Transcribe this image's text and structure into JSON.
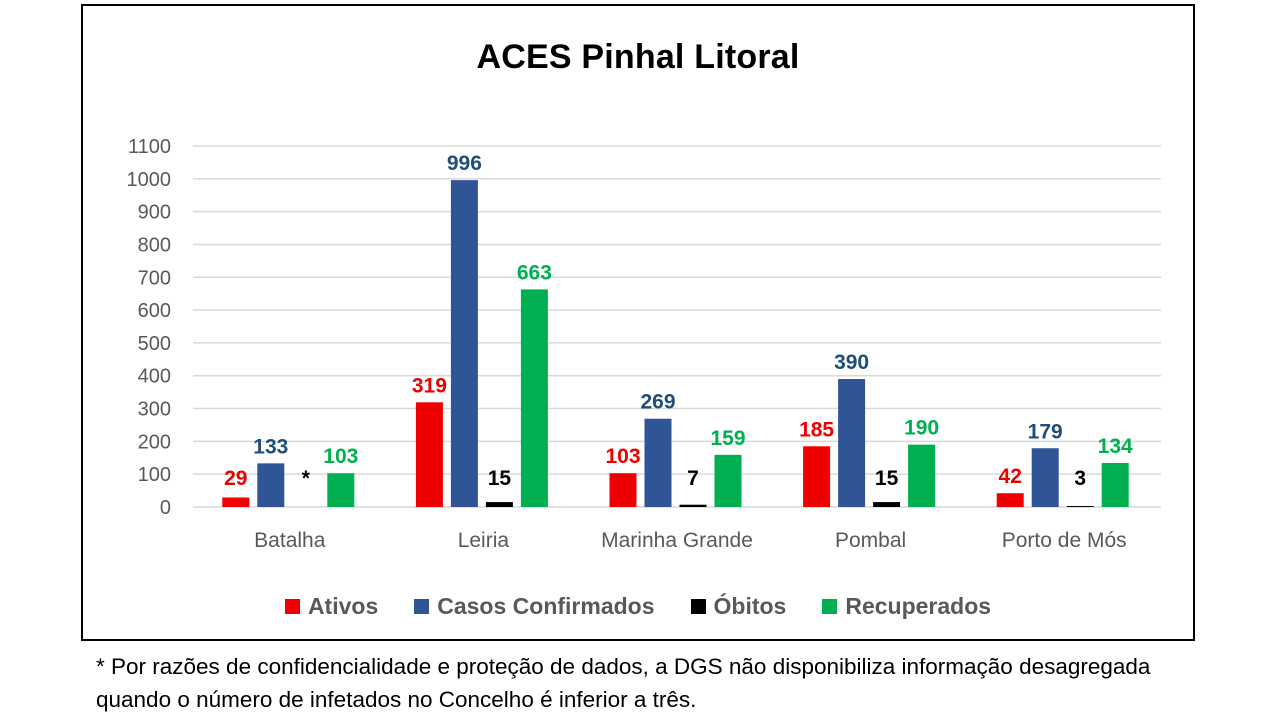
{
  "chart_data": {
    "type": "bar",
    "title": "ACES Pinhal Litoral",
    "categories": [
      "Batalha",
      "Leiria",
      "Marinha Grande",
      "Pombal",
      "Porto de Mós"
    ],
    "series": [
      {
        "name": "Ativos",
        "color": "#ee0000",
        "values": [
          29,
          319,
          103,
          185,
          42
        ],
        "labels": [
          "29",
          "319",
          "103",
          "185",
          "42"
        ]
      },
      {
        "name": "Casos Confirmados",
        "color": "#2f5597",
        "values": [
          133,
          996,
          269,
          390,
          179
        ],
        "labels": [
          "133",
          "996",
          "269",
          "390",
          "179"
        ]
      },
      {
        "name": "Óbitos",
        "color": "#000000",
        "values": [
          0,
          15,
          7,
          15,
          3
        ],
        "labels": [
          "*",
          "15",
          "7",
          "15",
          "3"
        ]
      },
      {
        "name": "Recuperados",
        "color": "#00b050",
        "values": [
          103,
          663,
          159,
          190,
          134
        ],
        "labels": [
          "103",
          "663",
          "159",
          "190",
          "134"
        ]
      }
    ],
    "label_colors": [
      "#ee0000",
      "#1f4e79",
      "#000000",
      "#00b050"
    ],
    "label_bold": [
      true,
      true,
      true,
      false
    ],
    "ylim": [
      0,
      1100
    ],
    "yticks": [
      0,
      100,
      200,
      300,
      400,
      500,
      600,
      700,
      800,
      900,
      1000,
      1100
    ],
    "grid": true,
    "legend_position": "bottom"
  },
  "footnote": "* Por razões de confidencialidade e proteção de dados, a DGS não disponibiliza informação desagregada quando o número de infetados no Concelho é inferior a três."
}
